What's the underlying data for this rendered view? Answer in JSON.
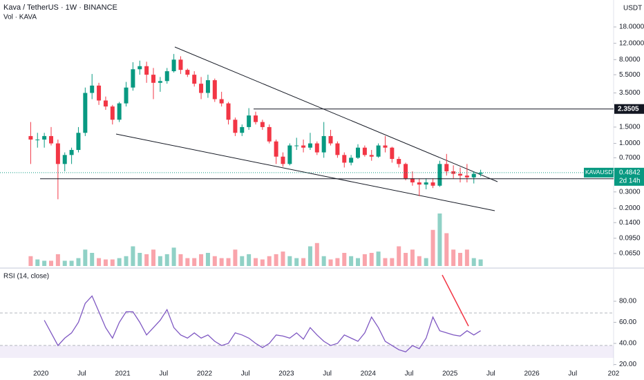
{
  "header": {
    "title": "Kava / TetherUS · 1W · BINANCE",
    "volume_label": "Vol · KAVA",
    "currency": "USDT"
  },
  "chart_data": [
    {
      "type": "candlestick",
      "log_scale": true,
      "up_color": "#089981",
      "down_color": "#f23645",
      "x": [
        "2019-11",
        "2019-12",
        "2020-01",
        "2020-02",
        "2020-03",
        "2020-04",
        "2020-05",
        "2020-06",
        "2020-07",
        "2020-08",
        "2020-09",
        "2020-10",
        "2020-11",
        "2020-12",
        "2021-01",
        "2021-02",
        "2021-03",
        "2021-04",
        "2021-05",
        "2021-06",
        "2021-07",
        "2021-08",
        "2021-09",
        "2021-10",
        "2021-11",
        "2021-12",
        "2022-01",
        "2022-02",
        "2022-03",
        "2022-04",
        "2022-05",
        "2022-06",
        "2022-07",
        "2022-08",
        "2022-09",
        "2022-10",
        "2022-11",
        "2022-12",
        "2023-01",
        "2023-02",
        "2023-03",
        "2023-04",
        "2023-05",
        "2023-06",
        "2023-07",
        "2023-08",
        "2023-09",
        "2023-10",
        "2023-11",
        "2023-12",
        "2024-01",
        "2024-02",
        "2024-03",
        "2024-04",
        "2024-05",
        "2024-06",
        "2024-07",
        "2024-08",
        "2024-09",
        "2024-10",
        "2024-11",
        "2024-12",
        "2025-01",
        "2025-02",
        "2025-03",
        "2025-04",
        "2025-05"
      ],
      "ohlc": [
        [
          1.2,
          1.7,
          0.6,
          1.1
        ],
        [
          1.1,
          1.3,
          0.9,
          1.1
        ],
        [
          1.1,
          1.3,
          0.9,
          1.2
        ],
        [
          1.2,
          1.5,
          0.95,
          1.0
        ],
        [
          1.0,
          1.1,
          0.25,
          0.6
        ],
        [
          0.6,
          0.8,
          0.5,
          0.75
        ],
        [
          0.75,
          0.9,
          0.6,
          0.85
        ],
        [
          0.85,
          1.5,
          0.8,
          1.3
        ],
        [
          1.3,
          4.0,
          1.2,
          3.5
        ],
        [
          3.5,
          5.6,
          3.0,
          4.2
        ],
        [
          4.2,
          4.5,
          2.6,
          2.9
        ],
        [
          2.9,
          3.2,
          2.3,
          2.5
        ],
        [
          2.5,
          2.6,
          1.6,
          1.8
        ],
        [
          1.8,
          2.8,
          1.7,
          2.7
        ],
        [
          2.7,
          4.6,
          2.5,
          4.0
        ],
        [
          4.0,
          7.5,
          3.7,
          6.3
        ],
        [
          6.3,
          7.8,
          5.5,
          6.8
        ],
        [
          6.8,
          7.6,
          4.5,
          5.5
        ],
        [
          5.5,
          6.5,
          3.0,
          4.5
        ],
        [
          4.5,
          5.2,
          3.6,
          4.7
        ],
        [
          4.7,
          6.5,
          4.4,
          6.0
        ],
        [
          6.0,
          9.2,
          5.8,
          8.0
        ],
        [
          8.0,
          8.7,
          5.6,
          6.2
        ],
        [
          6.2,
          6.4,
          5.2,
          5.5
        ],
        [
          5.5,
          6.0,
          4.1,
          4.4
        ],
        [
          4.4,
          5.2,
          3.0,
          3.5
        ],
        [
          3.5,
          5.5,
          3.1,
          4.8
        ],
        [
          4.8,
          5.0,
          2.8,
          3.0
        ],
        [
          3.0,
          3.6,
          2.5,
          2.7
        ],
        [
          2.7,
          2.8,
          1.6,
          1.8
        ],
        [
          1.8,
          1.9,
          1.2,
          1.3
        ],
        [
          1.3,
          1.6,
          1.2,
          1.5
        ],
        [
          1.5,
          2.4,
          1.4,
          2.0
        ],
        [
          2.0,
          2.2,
          1.6,
          1.7
        ],
        [
          1.7,
          1.8,
          1.4,
          1.5
        ],
        [
          1.5,
          1.6,
          1.0,
          1.05
        ],
        [
          1.05,
          1.1,
          0.6,
          0.72
        ],
        [
          0.72,
          0.8,
          0.56,
          0.6
        ],
        [
          0.6,
          1.0,
          0.58,
          0.95
        ],
        [
          0.95,
          1.15,
          0.85,
          0.95
        ],
        [
          0.95,
          1.1,
          0.8,
          0.9
        ],
        [
          0.9,
          1.3,
          0.85,
          1.0
        ],
        [
          1.0,
          1.05,
          0.75,
          0.8
        ],
        [
          0.8,
          1.7,
          0.7,
          1.2
        ],
        [
          1.2,
          1.4,
          0.95,
          1.0
        ],
        [
          1.0,
          1.05,
          0.7,
          0.75
        ],
        [
          0.75,
          0.8,
          0.55,
          0.62
        ],
        [
          0.62,
          0.75,
          0.58,
          0.7
        ],
        [
          0.7,
          0.98,
          0.68,
          0.9
        ],
        [
          0.9,
          0.95,
          0.72,
          0.75
        ],
        [
          0.75,
          0.85,
          0.65,
          0.72
        ],
        [
          0.72,
          1.0,
          0.7,
          0.95
        ],
        [
          0.95,
          1.2,
          0.8,
          0.9
        ],
        [
          0.9,
          0.92,
          0.62,
          0.68
        ],
        [
          0.68,
          0.72,
          0.55,
          0.6
        ],
        [
          0.6,
          0.62,
          0.4,
          0.42
        ],
        [
          0.42,
          0.5,
          0.35,
          0.38
        ],
        [
          0.38,
          0.42,
          0.27,
          0.36
        ],
        [
          0.36,
          0.42,
          0.32,
          0.38
        ],
        [
          0.38,
          0.42,
          0.33,
          0.35
        ],
        [
          0.35,
          0.65,
          0.34,
          0.6
        ],
        [
          0.6,
          0.77,
          0.45,
          0.5
        ],
        [
          0.5,
          0.58,
          0.42,
          0.47
        ],
        [
          0.47,
          0.55,
          0.38,
          0.45
        ],
        [
          0.45,
          0.6,
          0.38,
          0.43
        ],
        [
          0.43,
          0.5,
          0.37,
          0.47
        ],
        [
          0.47,
          0.52,
          0.44,
          0.4842
        ]
      ],
      "volume": [
        15,
        10,
        8,
        8,
        18,
        8,
        8,
        12,
        25,
        20,
        12,
        10,
        10,
        12,
        15,
        30,
        20,
        18,
        25,
        15,
        18,
        28,
        18,
        12,
        12,
        18,
        20,
        15,
        12,
        12,
        25,
        15,
        18,
        12,
        10,
        15,
        18,
        22,
        15,
        12,
        12,
        30,
        35,
        15,
        10,
        12,
        20,
        15,
        12,
        18,
        20,
        22,
        12,
        12,
        30,
        20,
        25,
        15,
        12,
        55,
        80,
        50,
        25,
        20,
        25,
        12,
        10
      ],
      "y2lim": [
        0,
        100
      ],
      "ylim": [
        0.0477,
        29.6
      ],
      "yticks": [
        {
          "value": 18,
          "label": "18.0000"
        },
        {
          "value": 12,
          "label": "12.0000"
        },
        {
          "value": 8,
          "label": "8.0000"
        },
        {
          "value": 5.5,
          "label": "5.5000"
        },
        {
          "value": 3.5,
          "label": "3.5000"
        },
        {
          "value": 1.5,
          "label": "1.5000"
        },
        {
          "value": 1,
          "label": "1.0000"
        },
        {
          "value": 0.7,
          "label": "0.7000"
        },
        {
          "value": 0.3,
          "label": "0.3000"
        },
        {
          "value": 0.2,
          "label": "0.2000"
        },
        {
          "value": 0.14,
          "label": "0.1400"
        },
        {
          "value": 0.095,
          "label": "0.0950"
        },
        {
          "value": 0.065,
          "label": "0.0650"
        }
      ],
      "xlim": [
        "2019-07",
        "2027-01"
      ],
      "xticks": [
        {
          "value": "2020-01",
          "label": "2020"
        },
        {
          "value": "2020-07",
          "label": "Jul"
        },
        {
          "value": "2021-01",
          "label": "2021"
        },
        {
          "value": "2021-07",
          "label": "Jul"
        },
        {
          "value": "2022-01",
          "label": "2022"
        },
        {
          "value": "2022-07",
          "label": "Jul"
        },
        {
          "value": "2023-01",
          "label": "2023"
        },
        {
          "value": "2023-07",
          "label": "Jul"
        },
        {
          "value": "2024-01",
          "label": "2024"
        },
        {
          "value": "2024-07",
          "label": "Jul"
        },
        {
          "value": "2025-01",
          "label": "2025"
        },
        {
          "value": "2025-07",
          "label": "Jul"
        },
        {
          "value": "2026-01",
          "label": "2026"
        },
        {
          "value": "2026-07",
          "label": "Jul"
        },
        {
          "value": "2027-01",
          "label": "202"
        }
      ],
      "levels": [
        2.3505,
        0.4154
      ],
      "last_price": {
        "symbol": "KAVAUSDT",
        "value": 0.4842,
        "countdown": "2d 14h"
      }
    },
    {
      "type": "line",
      "title": "RSI (14, close)",
      "color": "#7e57c2",
      "values": [
        null,
        null,
        62,
        50,
        38,
        45,
        50,
        60,
        78,
        85,
        70,
        55,
        45,
        60,
        70,
        70,
        60,
        48,
        55,
        62,
        72,
        55,
        48,
        45,
        50,
        45,
        48,
        42,
        38,
        40,
        50,
        48,
        45,
        40,
        36,
        40,
        48,
        47,
        45,
        50,
        44,
        55,
        48,
        42,
        38,
        40,
        48,
        45,
        42,
        50,
        65,
        55,
        42,
        38,
        34,
        32,
        38,
        35,
        45,
        65,
        52,
        50,
        48,
        47,
        52,
        48,
        52
      ],
      "ylim": [
        18.4,
        108.2
      ],
      "yticks": [
        {
          "value": 80,
          "label": "80.00"
        },
        {
          "value": 60,
          "label": "60.00"
        },
        {
          "value": 40,
          "label": "40.00"
        },
        {
          "value": 20,
          "label": "20.00"
        }
      ]
    }
  ]
}
